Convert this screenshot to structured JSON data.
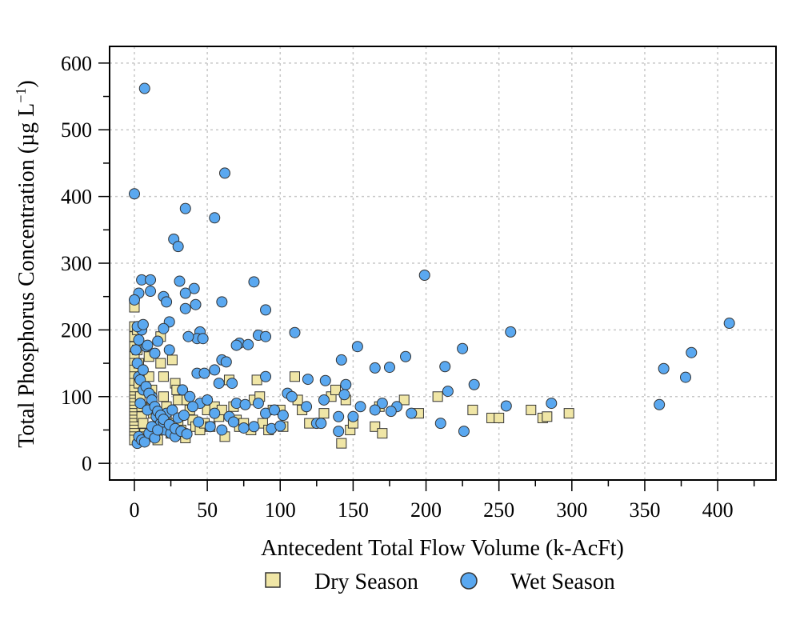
{
  "chart_data": {
    "type": "scatter",
    "title": "",
    "xlabel": "Antecedent Total Flow Volume (k-AcFt)",
    "ylabel_main": "Total Phosphorus Concentration (µg L",
    "ylabel_sup": "−1",
    "ylabel_close": ")",
    "xlim": [
      -17,
      440
    ],
    "ylim": [
      -25,
      625
    ],
    "xticks": [
      0,
      50,
      100,
      150,
      200,
      250,
      300,
      350,
      400
    ],
    "xminor": [
      25,
      75,
      125,
      175,
      225,
      275,
      325,
      375,
      425
    ],
    "yticks": [
      0,
      100,
      200,
      300,
      400,
      500,
      600
    ],
    "yminor": [
      50,
      150,
      250,
      350,
      450,
      550
    ],
    "grid": true,
    "legend_position": "bottom",
    "series": [
      {
        "name": "Dry Season",
        "marker": "square",
        "color": "#f0e6a6",
        "points": [
          [
            0,
            234
          ],
          [
            0,
            205
          ],
          [
            0,
            190
          ],
          [
            0,
            175
          ],
          [
            0,
            160
          ],
          [
            0,
            150
          ],
          [
            0,
            140
          ],
          [
            0,
            130
          ],
          [
            0,
            120
          ],
          [
            0,
            110
          ],
          [
            0,
            100
          ],
          [
            0,
            95
          ],
          [
            0,
            90
          ],
          [
            0,
            85
          ],
          [
            0,
            80
          ],
          [
            0,
            75
          ],
          [
            0,
            70
          ],
          [
            0,
            65
          ],
          [
            0,
            60
          ],
          [
            0,
            55
          ],
          [
            0,
            50
          ],
          [
            0,
            45
          ],
          [
            0,
            40
          ],
          [
            0,
            35
          ],
          [
            2,
            200
          ],
          [
            2,
            170
          ],
          [
            3,
            150
          ],
          [
            3,
            120
          ],
          [
            4,
            100
          ],
          [
            5,
            85
          ],
          [
            5,
            70
          ],
          [
            6,
            60
          ],
          [
            7,
            45
          ],
          [
            8,
            40
          ],
          [
            10,
            160
          ],
          [
            10,
            130
          ],
          [
            12,
            110
          ],
          [
            12,
            90
          ],
          [
            13,
            75
          ],
          [
            14,
            55
          ],
          [
            15,
            40
          ],
          [
            16,
            35
          ],
          [
            18,
            190
          ],
          [
            18,
            150
          ],
          [
            20,
            130
          ],
          [
            20,
            100
          ],
          [
            22,
            85
          ],
          [
            22,
            70
          ],
          [
            24,
            60
          ],
          [
            25,
            45
          ],
          [
            26,
            155
          ],
          [
            28,
            120
          ],
          [
            29,
            110
          ],
          [
            30,
            95
          ],
          [
            30,
            60
          ],
          [
            32,
            50
          ],
          [
            33,
            45
          ],
          [
            35,
            38
          ],
          [
            36,
            95
          ],
          [
            38,
            80
          ],
          [
            40,
            65
          ],
          [
            42,
            55
          ],
          [
            45,
            50
          ],
          [
            48,
            60
          ],
          [
            50,
            80
          ],
          [
            52,
            55
          ],
          [
            55,
            85
          ],
          [
            58,
            70
          ],
          [
            60,
            80
          ],
          [
            62,
            40
          ],
          [
            65,
            125
          ],
          [
            68,
            85
          ],
          [
            70,
            65
          ],
          [
            72,
            55
          ],
          [
            75,
            60
          ],
          [
            80,
            50
          ],
          [
            82,
            95
          ],
          [
            84,
            125
          ],
          [
            86,
            100
          ],
          [
            88,
            60
          ],
          [
            92,
            50
          ],
          [
            95,
            80
          ],
          [
            100,
            80
          ],
          [
            102,
            55
          ],
          [
            110,
            130
          ],
          [
            112,
            95
          ],
          [
            115,
            80
          ],
          [
            120,
            60
          ],
          [
            130,
            75
          ],
          [
            135,
            100
          ],
          [
            138,
            110
          ],
          [
            142,
            30
          ],
          [
            145,
            95
          ],
          [
            148,
            50
          ],
          [
            150,
            60
          ],
          [
            165,
            55
          ],
          [
            168,
            85
          ],
          [
            170,
            45
          ],
          [
            185,
            95
          ],
          [
            195,
            75
          ],
          [
            208,
            100
          ],
          [
            232,
            80
          ],
          [
            245,
            68
          ],
          [
            250,
            68
          ],
          [
            272,
            80
          ],
          [
            280,
            68
          ],
          [
            283,
            70
          ],
          [
            298,
            75
          ]
        ]
      },
      {
        "name": "Wet Season",
        "marker": "circle",
        "color": "#5aa8f0",
        "points": [
          [
            7,
            562
          ],
          [
            0,
            404
          ],
          [
            62,
            435
          ],
          [
            35,
            382
          ],
          [
            55,
            368
          ],
          [
            27,
            336
          ],
          [
            30,
            325
          ],
          [
            199,
            282
          ],
          [
            5,
            275
          ],
          [
            11,
            275
          ],
          [
            82,
            272
          ],
          [
            31,
            273
          ],
          [
            41,
            262
          ],
          [
            11,
            258
          ],
          [
            3,
            255
          ],
          [
            35,
            255
          ],
          [
            20,
            250
          ],
          [
            60,
            242
          ],
          [
            0,
            245
          ],
          [
            22,
            242
          ],
          [
            42,
            238
          ],
          [
            90,
            230
          ],
          [
            35,
            232
          ],
          [
            24,
            212
          ],
          [
            45,
            197
          ],
          [
            20,
            202
          ],
          [
            5,
            200
          ],
          [
            110,
            196
          ],
          [
            258,
            197
          ],
          [
            408,
            210
          ],
          [
            2,
            205
          ],
          [
            6,
            208
          ],
          [
            43,
            187
          ],
          [
            47,
            187
          ],
          [
            37,
            190
          ],
          [
            85,
            192
          ],
          [
            90,
            190
          ],
          [
            72,
            180
          ],
          [
            70,
            177
          ],
          [
            78,
            178
          ],
          [
            16,
            183
          ],
          [
            8,
            175
          ],
          [
            9,
            177
          ],
          [
            3,
            185
          ],
          [
            153,
            175
          ],
          [
            225,
            172
          ],
          [
            382,
            166
          ],
          [
            14,
            165
          ],
          [
            24,
            170
          ],
          [
            60,
            155
          ],
          [
            63,
            152
          ],
          [
            55,
            140
          ],
          [
            43,
            135
          ],
          [
            48,
            135
          ],
          [
            186,
            160
          ],
          [
            142,
            155
          ],
          [
            363,
            142
          ],
          [
            378,
            129
          ],
          [
            165,
            143
          ],
          [
            175,
            144
          ],
          [
            213,
            145
          ],
          [
            119,
            126
          ],
          [
            131,
            124
          ],
          [
            145,
            118
          ],
          [
            233,
            118
          ],
          [
            58,
            120
          ],
          [
            67,
            120
          ],
          [
            90,
            130
          ],
          [
            105,
            105
          ],
          [
            3,
            130
          ],
          [
            6,
            110
          ],
          [
            12,
            100
          ],
          [
            4,
            90
          ],
          [
            9,
            80
          ],
          [
            15,
            70
          ],
          [
            18,
            60
          ],
          [
            21,
            50
          ],
          [
            25,
            45
          ],
          [
            28,
            40
          ],
          [
            33,
            110
          ],
          [
            38,
            100
          ],
          [
            45,
            90
          ],
          [
            50,
            95
          ],
          [
            55,
            75
          ],
          [
            65,
            70
          ],
          [
            70,
            90
          ],
          [
            76,
            88
          ],
          [
            85,
            90
          ],
          [
            90,
            75
          ],
          [
            96,
            80
          ],
          [
            102,
            72
          ],
          [
            108,
            100
          ],
          [
            118,
            85
          ],
          [
            125,
            60
          ],
          [
            130,
            95
          ],
          [
            140,
            70
          ],
          [
            144,
            103
          ],
          [
            150,
            70
          ],
          [
            155,
            85
          ],
          [
            170,
            90
          ],
          [
            180,
            85
          ],
          [
            190,
            75
          ],
          [
            210,
            60
          ],
          [
            215,
            108
          ],
          [
            226,
            48
          ],
          [
            255,
            86
          ],
          [
            286,
            90
          ],
          [
            360,
            88
          ],
          [
            2,
            30
          ],
          [
            3,
            40
          ],
          [
            5,
            35
          ],
          [
            7,
            32
          ],
          [
            10,
            45
          ],
          [
            12,
            55
          ],
          [
            14,
            38
          ],
          [
            16,
            50
          ],
          [
            20,
            62
          ],
          [
            22,
            75
          ],
          [
            26,
            80
          ],
          [
            30,
            68
          ],
          [
            34,
            72
          ],
          [
            40,
            85
          ],
          [
            44,
            62
          ],
          [
            52,
            55
          ],
          [
            60,
            50
          ],
          [
            68,
            62
          ],
          [
            75,
            53
          ],
          [
            82,
            55
          ],
          [
            94,
            52
          ],
          [
            100,
            56
          ],
          [
            128,
            60
          ],
          [
            140,
            48
          ],
          [
            165,
            80
          ],
          [
            176,
            78
          ],
          [
            1,
            170
          ],
          [
            2,
            150
          ],
          [
            4,
            125
          ],
          [
            6,
            140
          ],
          [
            8,
            115
          ],
          [
            10,
            105
          ],
          [
            12,
            95
          ],
          [
            14,
            85
          ],
          [
            16,
            78
          ],
          [
            18,
            72
          ],
          [
            20,
            66
          ],
          [
            24,
            58
          ],
          [
            28,
            52
          ],
          [
            32,
            48
          ],
          [
            36,
            44
          ]
        ]
      }
    ]
  },
  "legend": [
    {
      "label": "Dry Season",
      "marker": "square"
    },
    {
      "label": "Wet Season",
      "marker": "circle"
    }
  ],
  "colors": {
    "dry_fill": "#f0e6a6",
    "wet_fill": "#5aa8f0",
    "marker_stroke": "#333333",
    "grid": "#c8c8c8",
    "axis": "#000000"
  }
}
